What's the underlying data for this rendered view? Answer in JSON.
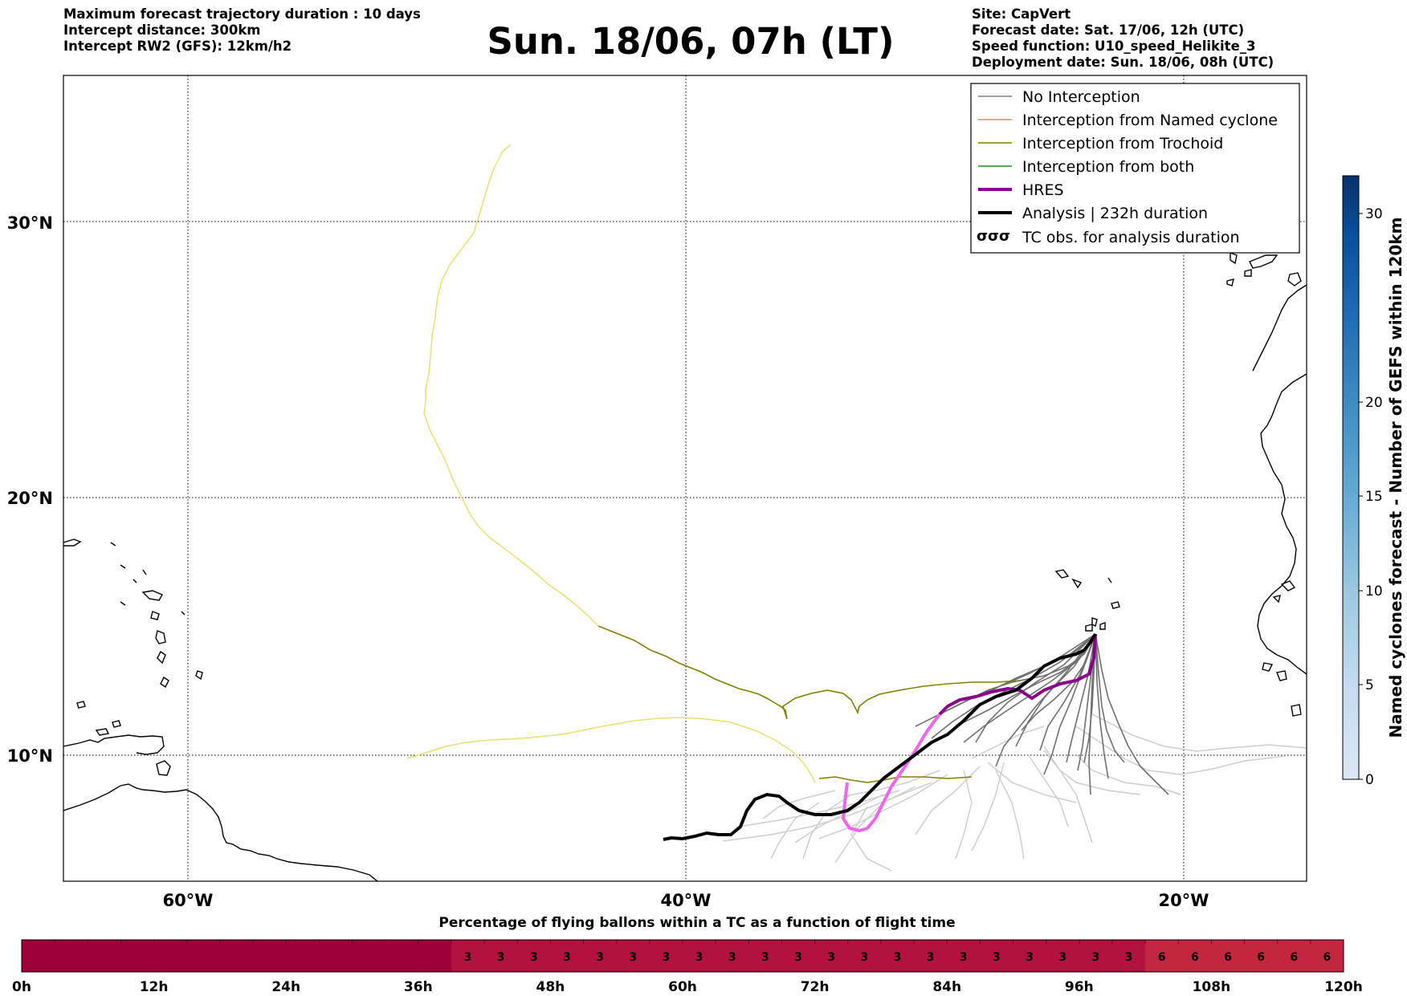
{
  "header": {
    "left_lines": [
      "Maximum forecast trajectory duration : 10 days",
      "Intercept distance: 300km",
      "Intercept RW2 (GFS):  12km/h2"
    ],
    "title": "Sun. 18/06, 07h (LT)",
    "right_lines": [
      "Site: CapVert",
      "Forecast date: Sat. 17/06, 12h (UTC)",
      "Speed function: U10_speed_Helikite_3",
      "Deployment date: Sun. 18/06, 08h (UTC)"
    ]
  },
  "map": {
    "lon_range": [
      -65,
      -15
    ],
    "lat_range": [
      5.4,
      34.7
    ],
    "lat_labels": [
      "30°N",
      "20°N",
      "10°N"
    ],
    "lon_labels": [
      "60°W",
      "40°W",
      "20°W"
    ],
    "gridline_style": "dotted"
  },
  "legend": {
    "placement": "top-right",
    "items": [
      {
        "label": "No Interception",
        "color": "#808080"
      },
      {
        "label": "Interception from Named cyclone",
        "color": "#ff7f50"
      },
      {
        "label": "Interception from Trochoid",
        "color": "#808000"
      },
      {
        "label": "Interception from both",
        "color": "#228b22"
      },
      {
        "label": "HRES",
        "color": "#8b008b"
      },
      {
        "label": "Analysis | 232h duration",
        "color": "#000000"
      },
      {
        "label": "TC obs. for analysis duration",
        "color": "#000000",
        "icon": "cyclone-symbols-icon"
      }
    ]
  },
  "colorbar_right": {
    "label": "Named cyclones forecast - Number of GEFS within 120km",
    "ticks": [
      "0",
      "5",
      "10",
      "15",
      "20",
      "30"
    ],
    "range": [
      0,
      32
    ],
    "colormap": "Blues"
  },
  "colorbar_bottom": {
    "title": "Percentage of flying ballons within a TC as a function of flight time",
    "tick_labels": [
      "0h",
      "12h",
      "24h",
      "36h",
      "48h",
      "60h",
      "72h",
      "84h",
      "96h",
      "108h",
      "120h"
    ],
    "cell_values": [
      "3",
      "3",
      "3",
      "3",
      "3",
      "3",
      "3",
      "3",
      "3",
      "3",
      "3",
      "3",
      "3",
      "3",
      "3",
      "3",
      "3",
      "3",
      "3",
      "3",
      "3",
      "6",
      "6",
      "6",
      "6",
      "6",
      "6"
    ],
    "colors": {
      "empty": "#9e0039",
      "value_3": "#b3123f",
      "value_6": "#c4253f"
    }
  }
}
